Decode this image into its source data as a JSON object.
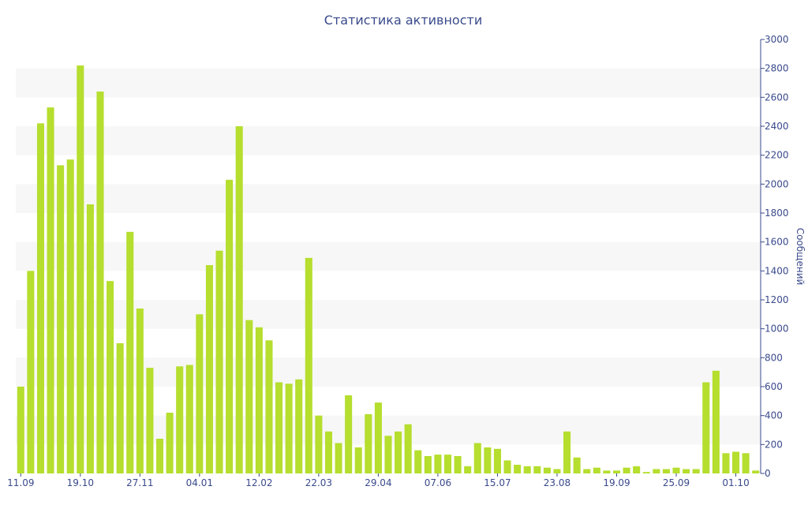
{
  "chart_data": {
    "type": "bar",
    "title": "Статистика активности",
    "ylabel": "Сообщений",
    "ylim": [
      0,
      3000
    ],
    "y_ticks": [
      0,
      200,
      400,
      600,
      800,
      1000,
      1200,
      1400,
      1600,
      1800,
      2000,
      2200,
      2400,
      2600,
      2800,
      3000
    ],
    "y_axis_position": "right",
    "x_tick_labels": [
      "11.09",
      "19.10",
      "27.11",
      "04.01",
      "12.02",
      "22.03",
      "29.04",
      "07.06",
      "15.07",
      "23.08",
      "19.09",
      "25.09",
      "01.10"
    ],
    "x_tick_bar_index": [
      0,
      6,
      12,
      18,
      24,
      30,
      36,
      42,
      48,
      54,
      60,
      66,
      72
    ],
    "colors": {
      "bar": "#b5de2e",
      "text": "#3a4a8c",
      "band": "#f7f7f7"
    },
    "values": [
      600,
      1400,
      2420,
      2530,
      2130,
      2170,
      2820,
      1860,
      2640,
      1330,
      900,
      1670,
      1140,
      730,
      240,
      420,
      740,
      750,
      1100,
      1440,
      1540,
      2030,
      2400,
      1060,
      1010,
      920,
      630,
      620,
      650,
      1490,
      400,
      290,
      210,
      540,
      180,
      410,
      490,
      260,
      290,
      340,
      160,
      120,
      130,
      130,
      120,
      50,
      210,
      180,
      170,
      90,
      60,
      50,
      50,
      40,
      30,
      290,
      110,
      30,
      40,
      20,
      20,
      40,
      50,
      10,
      30,
      30,
      40,
      30,
      30,
      630,
      710,
      140,
      150,
      140,
      20
    ]
  }
}
